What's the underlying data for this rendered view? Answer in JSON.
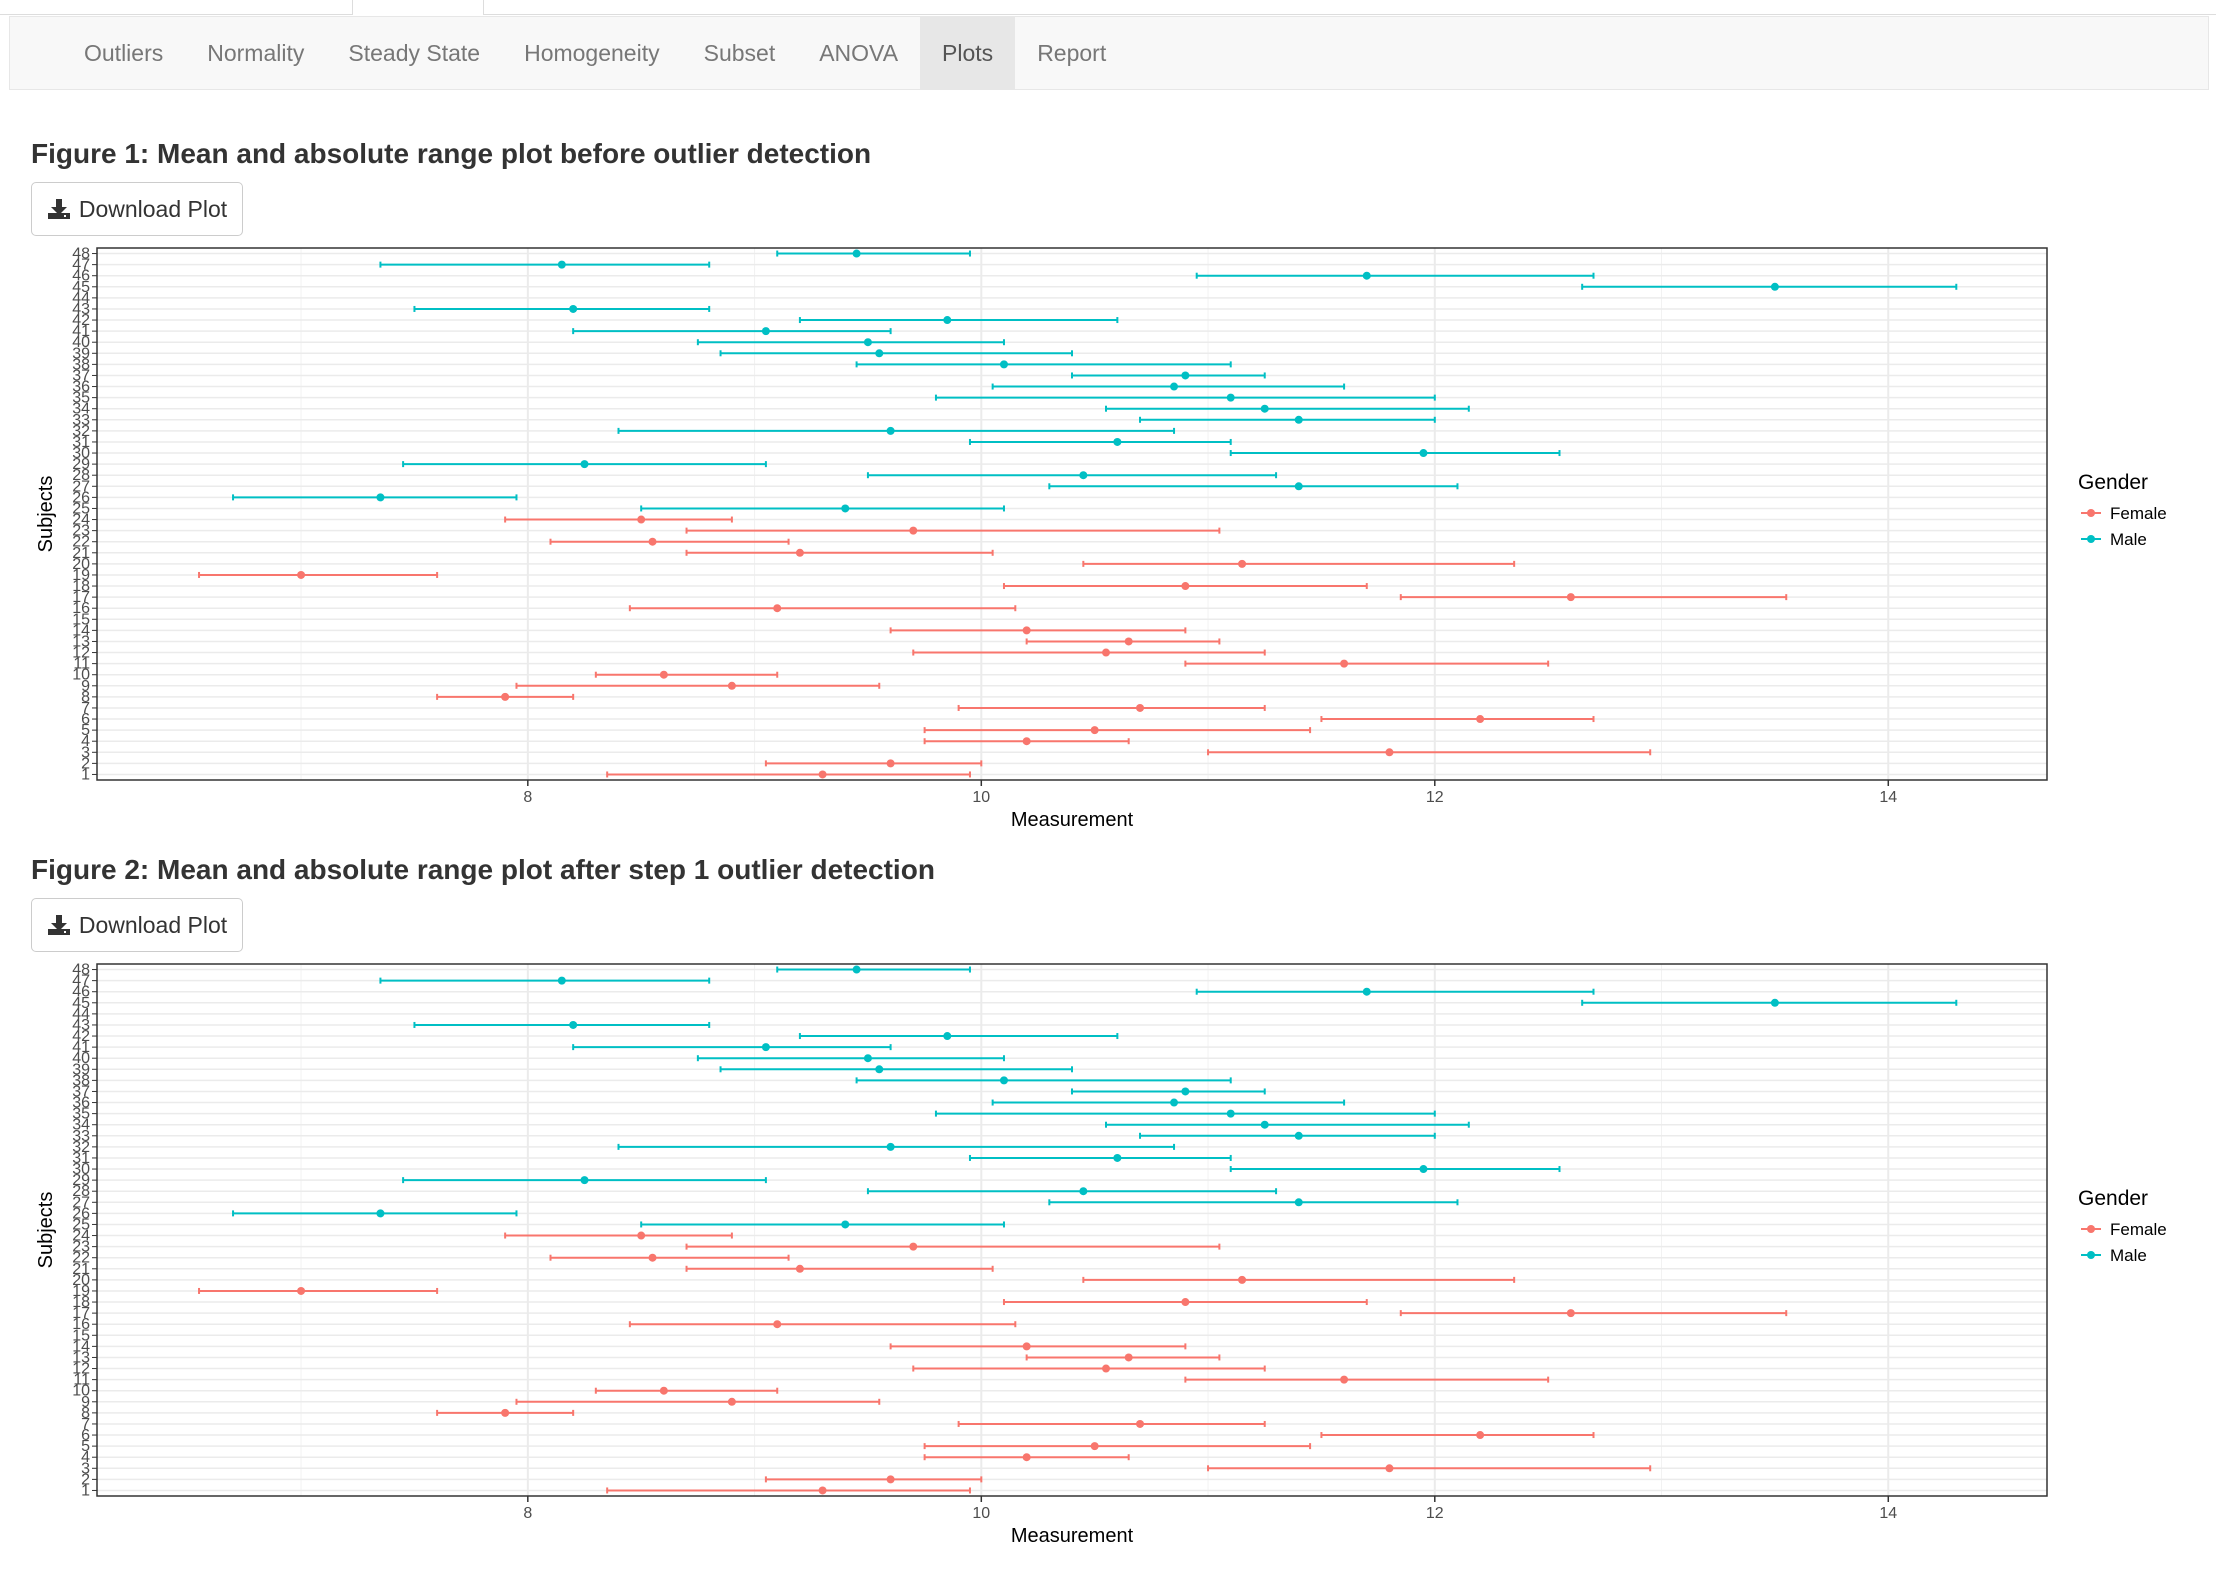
{
  "nav": {
    "tabs": [
      "Outliers",
      "Normality",
      "Steady State",
      "Homogeneity",
      "Subset",
      "ANOVA",
      "Plots",
      "Report"
    ],
    "active": "Plots"
  },
  "figures": [
    {
      "title": "Figure 1: Mean and absolute range plot before outlier detection",
      "download_label": "Download Plot"
    },
    {
      "title": "Figure 2: Mean and absolute range plot after step 1 outlier detection",
      "download_label": "Download Plot"
    }
  ],
  "icons": {
    "download": "download-icon"
  },
  "colors": {
    "female": "#F8766D",
    "male": "#00BFC4",
    "grid": "#EBEBEB",
    "panel_border": "#333333"
  },
  "chart_data": [
    {
      "type": "errorbar",
      "xlabel": "Measurement",
      "ylabel": "Subjects",
      "xlim": [
        6.1,
        14.7
      ],
      "x_ticks": [
        8,
        10,
        12,
        14
      ],
      "legend": {
        "title": "Gender",
        "entries": [
          "Female",
          "Male"
        ],
        "position": "right"
      },
      "grid": true,
      "series": [
        {
          "name": "Female",
          "subjects": [
            1,
            2,
            3,
            4,
            5,
            6,
            7,
            8,
            9,
            10,
            11,
            12,
            13,
            14,
            16,
            17,
            18,
            19,
            20,
            21,
            22,
            23,
            24
          ],
          "mean": [
            9.3,
            9.6,
            11.8,
            10.2,
            10.5,
            12.2,
            10.7,
            7.9,
            8.9,
            8.6,
            11.6,
            10.55,
            10.65,
            10.2,
            9.1,
            12.6,
            10.9,
            7.0,
            11.15,
            9.2,
            8.55,
            9.7,
            8.5
          ],
          "min": [
            8.35,
            9.05,
            11.0,
            9.75,
            9.75,
            11.5,
            9.9,
            7.6,
            7.95,
            8.3,
            10.9,
            9.7,
            10.2,
            9.6,
            8.45,
            11.85,
            10.1,
            6.55,
            10.45,
            8.7,
            8.1,
            8.7,
            7.9
          ],
          "max": [
            9.95,
            10.0,
            12.95,
            10.65,
            11.45,
            12.7,
            11.25,
            8.2,
            9.55,
            9.1,
            12.5,
            11.25,
            11.05,
            10.9,
            10.15,
            13.55,
            11.7,
            7.6,
            12.35,
            10.05,
            9.15,
            11.05,
            8.9
          ]
        },
        {
          "name": "Male",
          "subjects": [
            25,
            26,
            27,
            28,
            29,
            30,
            31,
            32,
            33,
            34,
            35,
            36,
            37,
            38,
            39,
            40,
            41,
            42,
            43,
            45,
            46,
            47,
            48
          ],
          "mean": [
            9.4,
            7.35,
            11.4,
            10.45,
            8.25,
            11.95,
            10.6,
            9.6,
            11.4,
            11.25,
            11.1,
            10.85,
            10.9,
            10.1,
            9.55,
            9.5,
            9.05,
            9.85,
            8.2,
            13.5,
            11.7,
            8.15,
            9.45
          ],
          "min": [
            8.5,
            6.7,
            10.3,
            9.5,
            7.45,
            11.1,
            9.95,
            8.4,
            10.7,
            10.55,
            9.8,
            10.05,
            10.4,
            9.45,
            8.85,
            8.75,
            8.2,
            9.2,
            7.5,
            12.65,
            10.95,
            7.35,
            9.1
          ],
          "max": [
            10.1,
            7.95,
            12.1,
            11.3,
            9.05,
            12.55,
            11.1,
            10.85,
            12.0,
            12.15,
            12.0,
            11.6,
            11.25,
            11.1,
            10.4,
            10.1,
            9.6,
            10.6,
            8.8,
            14.3,
            12.7,
            8.8,
            9.95
          ]
        }
      ]
    },
    {
      "type": "errorbar",
      "xlabel": "Measurement",
      "ylabel": "Subjects",
      "xlim": [
        6.1,
        14.7
      ],
      "x_ticks": [
        8,
        10,
        12,
        14
      ],
      "legend": {
        "title": "Gender",
        "entries": [
          "Female",
          "Male"
        ],
        "position": "right"
      },
      "grid": true,
      "series": [
        {
          "name": "Female",
          "subjects": [
            1,
            2,
            3,
            4,
            5,
            6,
            7,
            8,
            9,
            10,
            11,
            12,
            13,
            14,
            16,
            17,
            18,
            19,
            20,
            21,
            22,
            23,
            24
          ],
          "mean": [
            9.3,
            9.6,
            11.8,
            10.2,
            10.5,
            12.2,
            10.7,
            7.9,
            8.9,
            8.6,
            11.6,
            10.55,
            10.65,
            10.2,
            9.1,
            12.6,
            10.9,
            7.0,
            11.15,
            9.2,
            8.55,
            9.7,
            8.5
          ],
          "min": [
            8.35,
            9.05,
            11.0,
            9.75,
            9.75,
            11.5,
            9.9,
            7.6,
            7.95,
            8.3,
            10.9,
            9.7,
            10.2,
            9.6,
            8.45,
            11.85,
            10.1,
            6.55,
            10.45,
            8.7,
            8.1,
            8.7,
            7.9
          ],
          "max": [
            9.95,
            10.0,
            12.95,
            10.65,
            11.45,
            12.7,
            11.25,
            8.2,
            9.55,
            9.1,
            12.5,
            11.25,
            11.05,
            10.9,
            10.15,
            13.55,
            11.7,
            7.6,
            12.35,
            10.05,
            9.15,
            11.05,
            8.9
          ]
        },
        {
          "name": "Male",
          "subjects": [
            25,
            26,
            27,
            28,
            29,
            30,
            31,
            32,
            33,
            34,
            35,
            36,
            37,
            38,
            39,
            40,
            41,
            42,
            43,
            45,
            46,
            47,
            48
          ],
          "mean": [
            9.4,
            7.35,
            11.4,
            10.45,
            8.25,
            11.95,
            10.6,
            9.6,
            11.4,
            11.25,
            11.1,
            10.85,
            10.9,
            10.1,
            9.55,
            9.5,
            9.05,
            9.85,
            8.2,
            13.5,
            11.7,
            8.15,
            9.45
          ],
          "min": [
            8.5,
            6.7,
            10.3,
            9.5,
            7.45,
            11.1,
            9.95,
            8.4,
            10.7,
            10.55,
            9.8,
            10.05,
            10.4,
            9.45,
            8.85,
            8.75,
            8.2,
            9.2,
            7.5,
            12.65,
            10.95,
            7.35,
            9.1
          ],
          "max": [
            10.1,
            7.95,
            12.1,
            11.3,
            9.05,
            12.55,
            11.1,
            10.85,
            12.0,
            12.15,
            12.0,
            11.6,
            11.25,
            11.1,
            10.4,
            10.1,
            9.6,
            10.6,
            8.8,
            14.3,
            12.7,
            8.8,
            9.95
          ]
        }
      ]
    }
  ]
}
